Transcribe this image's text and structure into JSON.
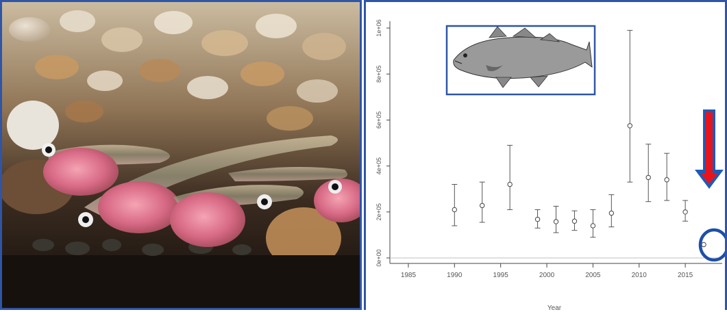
{
  "photo": {
    "subject": "juvenile fish larvae over pebbles"
  },
  "inset": {
    "subject": "cod illustration"
  },
  "annotation": {
    "arrow_color": "#e8141b",
    "arrow_outline": "#1d5bb8",
    "circle_color": "#1d4fa8"
  },
  "chart_data": {
    "type": "scatter",
    "xlabel": "Year",
    "ylabel": "",
    "xlim": [
      1983,
      2019
    ],
    "ylim": [
      0,
      1000000
    ],
    "xticks": [
      1985,
      1990,
      1995,
      2000,
      2005,
      2010,
      2015
    ],
    "yticks": [
      0,
      200000,
      400000,
      600000,
      800000,
      1000000
    ],
    "ytick_labels": [
      "0e+00",
      "2e+05",
      "4e+05",
      "6e+05",
      "8e+05",
      "1e+06"
    ],
    "points": [
      {
        "x": 1990,
        "y": 210000,
        "lo": 140000,
        "hi": 320000
      },
      {
        "x": 1993,
        "y": 228000,
        "lo": 155000,
        "hi": 330000
      },
      {
        "x": 1996,
        "y": 320000,
        "lo": 210000,
        "hi": 490000
      },
      {
        "x": 1999,
        "y": 168000,
        "lo": 130000,
        "hi": 210000
      },
      {
        "x": 2001,
        "y": 158000,
        "lo": 110000,
        "hi": 225000
      },
      {
        "x": 2003,
        "y": 160000,
        "lo": 120000,
        "hi": 205000
      },
      {
        "x": 2005,
        "y": 140000,
        "lo": 90000,
        "hi": 210000
      },
      {
        "x": 2007,
        "y": 195000,
        "lo": 135000,
        "hi": 275000
      },
      {
        "x": 2009,
        "y": 575000,
        "lo": 330000,
        "hi": 990000
      },
      {
        "x": 2011,
        "y": 350000,
        "lo": 245000,
        "hi": 495000
      },
      {
        "x": 2013,
        "y": 340000,
        "lo": 250000,
        "hi": 455000
      },
      {
        "x": 2015,
        "y": 200000,
        "lo": 160000,
        "hi": 250000
      },
      {
        "x": 2017,
        "y": 58000
      }
    ],
    "grid": false,
    "baseline": 0
  }
}
